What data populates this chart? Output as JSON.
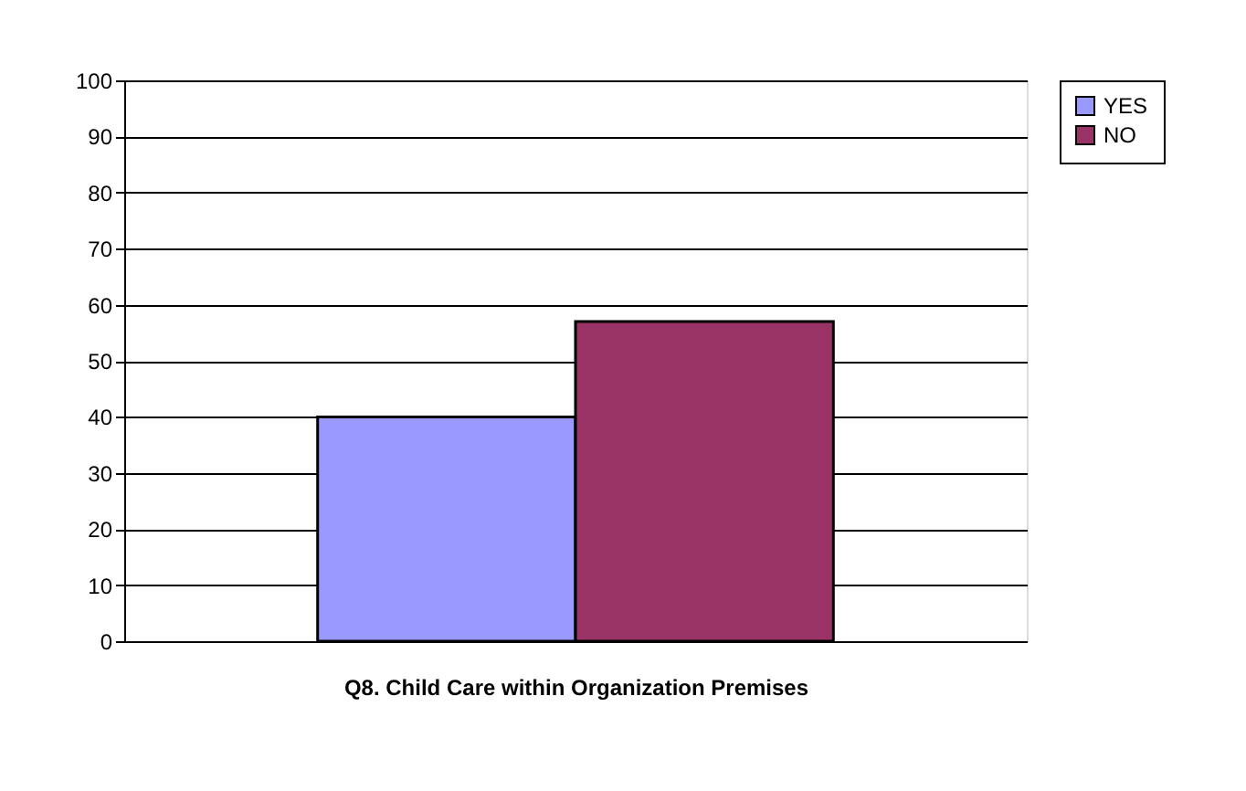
{
  "chart_data": {
    "type": "bar",
    "xlabel": "Q8. Child Care within Organization Premises",
    "categories": [
      null
    ],
    "series": [
      {
        "name": "YES",
        "color": "#9999ff",
        "values": [
          40
        ]
      },
      {
        "name": "NO",
        "color": "#993366",
        "values": [
          57
        ]
      }
    ],
    "ylim": [
      0,
      100
    ],
    "yticks": [
      0,
      10,
      20,
      30,
      40,
      50,
      60,
      70,
      80,
      90,
      100
    ],
    "grid": "y",
    "legend": "right"
  }
}
